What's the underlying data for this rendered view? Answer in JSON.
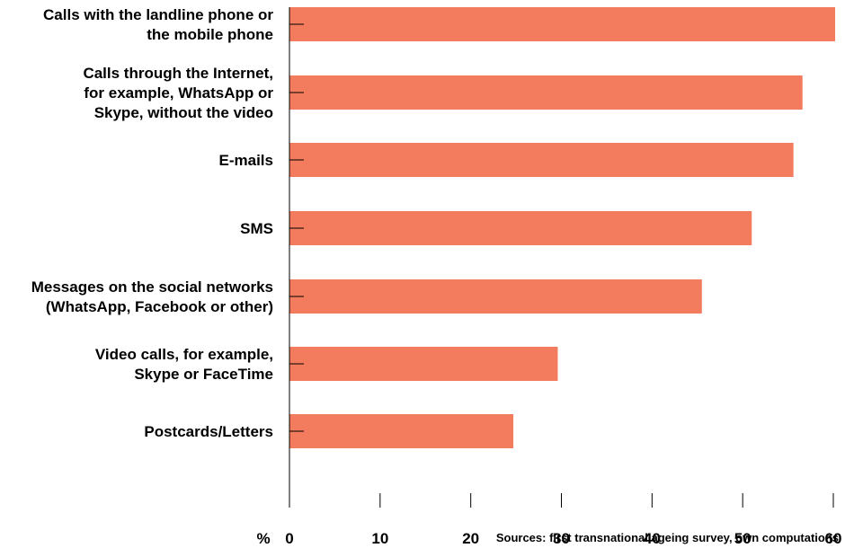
{
  "chart_data": {
    "type": "bar",
    "orientation": "horizontal",
    "categories": [
      [
        "Calls with the landline phone or",
        "the mobile phone"
      ],
      [
        "Calls through the Internet,",
        "for example, WhatsApp or",
        "Skype, without the video"
      ],
      [
        "E-mails"
      ],
      [
        "SMS"
      ],
      [
        "Messages on the social networks",
        "(WhatsApp, Facebook or other)"
      ],
      [
        "Video calls, for example,",
        "Skype or FaceTime"
      ],
      [
        "Postcards/Letters"
      ]
    ],
    "values": [
      60.2,
      56.6,
      55.6,
      51.0,
      45.5,
      29.6,
      24.7
    ],
    "xlim": [
      0,
      60
    ],
    "xticks": [
      0,
      10,
      20,
      30,
      40,
      50,
      60
    ],
    "xunit": "%",
    "bar_color": "#f27c5d",
    "axis_color": "#000000",
    "grid": false,
    "legend": "none",
    "title": "",
    "xlabel": "",
    "ylabel": "",
    "source": "Sources: first transnational ageing survey, own computations"
  }
}
